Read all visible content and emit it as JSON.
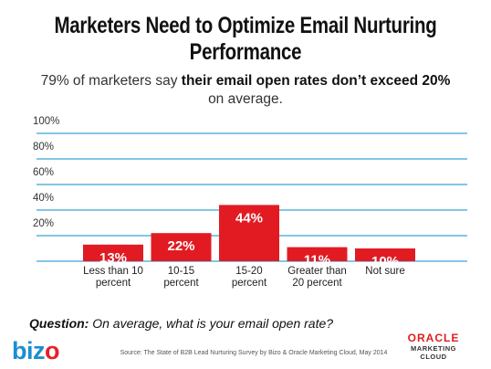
{
  "header": {
    "title_line1": "Marketers Need to Optimize Email Nurturing",
    "title_line2": "Performance",
    "subtitle_pre": "79% of marketers say ",
    "subtitle_bold": "their email open rates don’t exceed 20%",
    "subtitle_post": "on average."
  },
  "footer": {
    "question_label": "Question:",
    "question_text": " On average, what is your email open rate?",
    "source": "Source: The State of B2B Lead Nurturing Survey by Bizo & Oracle Marketing Cloud, May 2014",
    "bizo_logo_a": "biz",
    "bizo_logo_b": "o",
    "oracle_brand": "ORACLE",
    "oracle_sub1": "MARKETING",
    "oracle_sub2": "CLOUD"
  },
  "colors": {
    "bar": "#e21b23",
    "grid": "#5ab4e0",
    "bar_label": "#ffffff"
  },
  "chart_data": {
    "type": "bar",
    "categories": [
      [
        "Less than 10",
        "percent"
      ],
      [
        "10-15",
        "percent"
      ],
      [
        "15-20",
        "percent"
      ],
      [
        "Greater than",
        "20 percent"
      ],
      [
        "Not sure"
      ]
    ],
    "values": [
      13,
      22,
      44,
      11,
      10
    ],
    "value_labels": [
      "13%",
      "22%",
      "44%",
      "11%",
      "10%"
    ],
    "yticks": [
      20,
      40,
      60,
      80,
      100
    ],
    "ytick_labels": [
      "20%",
      "40%",
      "60%",
      "80%",
      "100%"
    ],
    "ylim": [
      0,
      100
    ],
    "grid": true
  }
}
